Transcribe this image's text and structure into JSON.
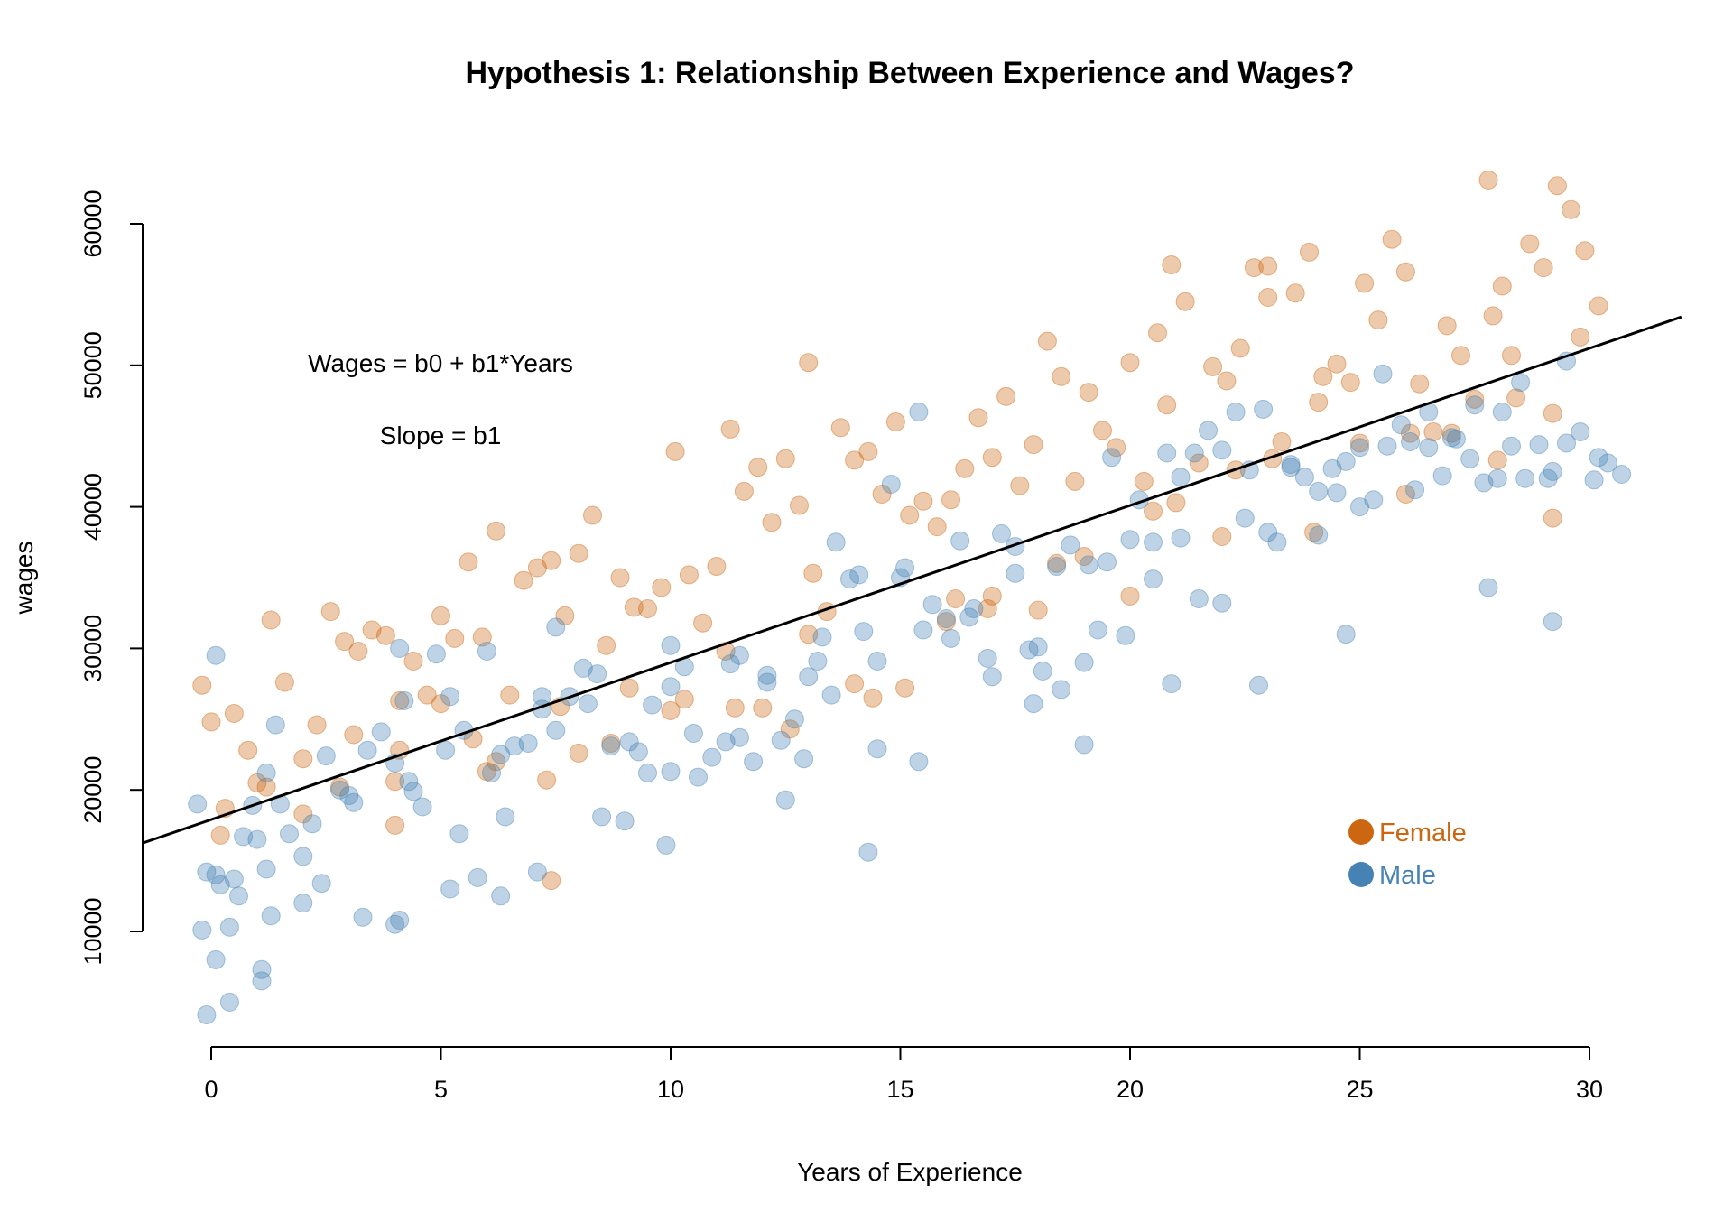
{
  "chart_data": {
    "type": "scatter",
    "title": "Hypothesis 1: Relationship Between Experience and Wages?",
    "xlabel": "Years of Experience",
    "ylabel": "wages",
    "xlim": [
      -1.5,
      32
    ],
    "ylim": [
      2000,
      66000
    ],
    "x_ticks": [
      0,
      5,
      10,
      15,
      20,
      25,
      30
    ],
    "y_ticks": [
      10000,
      20000,
      30000,
      40000,
      50000,
      60000
    ],
    "x_tick_labels": [
      "0",
      "5",
      "10",
      "15",
      "20",
      "25",
      "30"
    ],
    "y_tick_labels": [
      "10000",
      "20000",
      "30000",
      "40000",
      "50000",
      "60000"
    ],
    "grid": false,
    "legend_position": "bottom-right",
    "annotations": [
      "Wages = b0 + b1*Years",
      "Slope = b1"
    ],
    "regression_line": {
      "intercept": 17900,
      "slope": 1110,
      "color": "#000000"
    },
    "series": [
      {
        "name": "Female",
        "color": "#cc6611",
        "x": [
          -0.2,
          0.0,
          0.2,
          0.5,
          0.8,
          1.0,
          1.3,
          1.6,
          2.0,
          2.3,
          2.6,
          2.9,
          3.2,
          3.5,
          3.8,
          4.1,
          4.4,
          4.7,
          5.0,
          5.3,
          5.6,
          5.9,
          6.2,
          6.5,
          6.8,
          7.1,
          7.4,
          7.7,
          8.0,
          8.3,
          8.6,
          8.9,
          9.2,
          9.5,
          9.8,
          10.1,
          10.4,
          10.7,
          11.0,
          11.3,
          11.6,
          11.9,
          12.2,
          12.5,
          12.8,
          13.1,
          13.4,
          13.7,
          14.0,
          14.3,
          14.6,
          14.9,
          15.2,
          15.5,
          15.8,
          16.1,
          16.4,
          16.7,
          17.0,
          17.3,
          17.6,
          17.9,
          18.2,
          18.5,
          18.8,
          19.1,
          19.4,
          19.7,
          20.0,
          20.3,
          20.6,
          20.9,
          21.2,
          21.5,
          21.8,
          22.1,
          22.4,
          22.7,
          23.0,
          23.3,
          23.6,
          23.9,
          24.2,
          24.5,
          24.8,
          25.1,
          25.4,
          25.7,
          26.0,
          26.3,
          26.6,
          26.9,
          27.2,
          27.5,
          27.8,
          28.1,
          28.4,
          28.7,
          29.0,
          29.3,
          29.6,
          29.9,
          30.2,
          2.0,
          4.0,
          6.0,
          8.0,
          10.0,
          12.0,
          14.0,
          16.0,
          18.0,
          20.0,
          22.0,
          24.0,
          26.0,
          28.0,
          1.2,
          3.1,
          5.0,
          6.2,
          7.3,
          9.1,
          11.2,
          13.0,
          15.1,
          16.9,
          19.0,
          21.0,
          23.1,
          25.0,
          27.0,
          29.2,
          0.3,
          2.8,
          4.1,
          5.7,
          7.6,
          8.7,
          10.3,
          12.6,
          14.4,
          16.2,
          18.4,
          20.5,
          22.3,
          24.1,
          26.1,
          28.3,
          29.8,
          23.0,
          27.9,
          29.2,
          20.8,
          13.0,
          11.4,
          17.0,
          7.4,
          4.0
        ],
        "y": [
          27400,
          24800,
          16800,
          25400,
          22800,
          20500,
          32000,
          27600,
          22200,
          24600,
          32600,
          30500,
          29800,
          31300,
          30900,
          26300,
          29100,
          26700,
          32300,
          30700,
          36100,
          30800,
          38300,
          26700,
          34800,
          35700,
          36200,
          32300,
          36700,
          39400,
          30200,
          35000,
          32900,
          32800,
          34300,
          43900,
          35200,
          31800,
          35800,
          45500,
          41100,
          42800,
          38900,
          43400,
          40100,
          35300,
          32600,
          45600,
          43300,
          43900,
          40900,
          46000,
          39400,
          40400,
          38600,
          40500,
          42700,
          46300,
          43500,
          47800,
          41500,
          44400,
          51700,
          49200,
          41800,
          48100,
          45400,
          44200,
          50200,
          41800,
          52300,
          57100,
          54500,
          43100,
          49900,
          48900,
          51200,
          56900,
          54800,
          44600,
          55100,
          58000,
          49200,
          50100,
          48800,
          55800,
          53200,
          58900,
          56600,
          48700,
          45300,
          52800,
          50700,
          47600,
          63100,
          55600,
          47700,
          58600,
          56900,
          62700,
          61000,
          58100,
          54200,
          18300,
          20600,
          21300,
          22600,
          25600,
          25800,
          27500,
          31900,
          32700,
          33700,
          37900,
          38200,
          40900,
          43300,
          20200,
          23900,
          26100,
          22000,
          20700,
          27200,
          29800,
          31000,
          27200,
          32800,
          36500,
          40300,
          43400,
          44500,
          45200,
          46600,
          18700,
          20200,
          22800,
          23600,
          25900,
          23300,
          26400,
          24300,
          26500,
          33500,
          36000,
          39700,
          42600,
          47400,
          45200,
          50700,
          52000,
          57000,
          53500,
          39200,
          47200,
          50200,
          25800,
          33700,
          13600,
          17500
        ]
      },
      {
        "name": "Male",
        "color": "#4682b4",
        "x": [
          -0.3,
          -0.1,
          0.1,
          0.2,
          0.4,
          0.6,
          0.9,
          1.1,
          1.2,
          1.4,
          1.7,
          2.0,
          2.2,
          2.5,
          2.8,
          3.1,
          3.4,
          3.7,
          4.0,
          4.1,
          4.3,
          4.6,
          4.9,
          5.2,
          5.5,
          5.8,
          6.1,
          6.3,
          6.6,
          6.9,
          7.2,
          7.5,
          7.8,
          8.1,
          8.4,
          8.7,
          9.0,
          9.3,
          9.6,
          10.0,
          10.3,
          10.6,
          10.9,
          11.2,
          11.5,
          11.8,
          12.1,
          12.4,
          12.7,
          13.0,
          13.3,
          13.6,
          13.9,
          14.2,
          14.5,
          14.8,
          15.1,
          15.4,
          15.7,
          16.0,
          16.3,
          16.6,
          16.9,
          17.2,
          17.5,
          17.8,
          18.1,
          18.4,
          18.7,
          19.0,
          19.3,
          19.6,
          19.9,
          20.2,
          20.5,
          20.8,
          21.1,
          21.4,
          21.7,
          22.0,
          22.3,
          22.6,
          22.9,
          23.2,
          23.5,
          23.8,
          24.1,
          24.4,
          24.7,
          25.0,
          25.3,
          25.6,
          25.9,
          26.2,
          26.5,
          26.8,
          27.1,
          27.4,
          27.7,
          28.0,
          28.3,
          28.6,
          28.9,
          29.2,
          29.5,
          29.8,
          30.1,
          30.4,
          30.7,
          0.1,
          0.5,
          1.0,
          1.3,
          2.0,
          3.0,
          4.2,
          5.1,
          6.0,
          7.2,
          8.2,
          9.1,
          10.0,
          11.3,
          12.1,
          13.2,
          14.1,
          15.0,
          16.1,
          17.0,
          18.0,
          19.1,
          20.0,
          21.1,
          22.0,
          23.0,
          24.1,
          25.0,
          26.1,
          27.0,
          28.1,
          29.1,
          30.2,
          -0.2,
          0.7,
          1.5,
          2.4,
          3.3,
          4.4,
          5.4,
          6.4,
          7.5,
          8.5,
          9.5,
          10.5,
          11.5,
          12.5,
          13.5,
          14.5,
          15.5,
          16.5,
          17.5,
          18.5,
          19.5,
          20.5,
          21.5,
          22.5,
          23.5,
          24.5,
          25.5,
          26.5,
          27.5,
          28.5,
          29.5,
          0.4,
          1.1,
          4.1,
          6.3,
          9.9,
          14.3,
          19.0,
          22.8,
          29.2,
          -0.1,
          0.1,
          1.2,
          4.0,
          5.2,
          7.1,
          10.0,
          12.9,
          15.4,
          17.9,
          20.9,
          24.7,
          27.8
        ],
        "y": [
          19000,
          14200,
          8000,
          13300,
          10300,
          12500,
          18900,
          7300,
          21200,
          24600,
          16900,
          15300,
          17600,
          22400,
          20000,
          19100,
          22800,
          24100,
          21900,
          30000,
          20600,
          18800,
          29600,
          26600,
          24200,
          13800,
          21200,
          22500,
          23100,
          23300,
          25700,
          31500,
          26600,
          28600,
          28200,
          23100,
          17800,
          22700,
          26000,
          21300,
          28700,
          20900,
          22300,
          23400,
          29500,
          22000,
          27600,
          23500,
          25000,
          28000,
          30800,
          37500,
          34900,
          31200,
          29100,
          41600,
          35700,
          46700,
          33100,
          32100,
          37600,
          32800,
          29300,
          38100,
          37200,
          29900,
          28400,
          35800,
          37300,
          29000,
          31300,
          43500,
          30900,
          40500,
          34900,
          43800,
          42100,
          43800,
          45400,
          44000,
          46700,
          42600,
          46900,
          37500,
          42800,
          42100,
          41100,
          42700,
          43200,
          44200,
          40500,
          44300,
          45800,
          41200,
          44200,
          42200,
          44800,
          43400,
          41700,
          42000,
          44300,
          42000,
          44400,
          42500,
          44500,
          45300,
          41900,
          43100,
          42300,
          14000,
          13700,
          16500,
          11100,
          12000,
          19600,
          26300,
          22800,
          29800,
          26600,
          26100,
          23400,
          27300,
          28900,
          28100,
          29100,
          35200,
          35000,
          30700,
          28000,
          30100,
          35900,
          37700,
          37800,
          33200,
          38200,
          38000,
          40000,
          44600,
          44900,
          46700,
          42000,
          43500,
          10100,
          16700,
          19000,
          13400,
          11000,
          19900,
          16900,
          18100,
          24200,
          18100,
          21200,
          24000,
          23700,
          19300,
          26700,
          22900,
          31300,
          32200,
          35300,
          27100,
          36100,
          37500,
          33500,
          39200,
          43000,
          41000,
          49400,
          46700,
          47200,
          48800,
          50300,
          5000,
          6500,
          10800,
          12500,
          16100,
          15600,
          23200,
          27400,
          31900,
          4100,
          29500,
          14400,
          10500,
          13000,
          14200,
          30200,
          22200,
          22000,
          26100,
          27500,
          31000,
          34300
        ]
      }
    ]
  }
}
